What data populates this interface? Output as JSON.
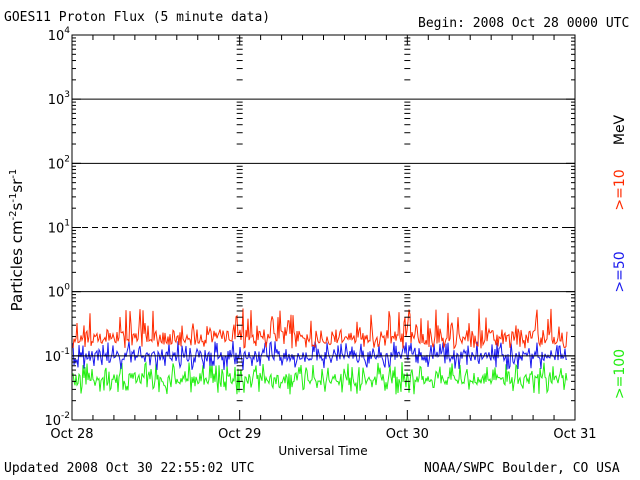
{
  "header": {
    "title": "GOES11 Proton Flux (5 minute data)",
    "begin": "Begin: 2008 Oct 28 0000 UTC"
  },
  "footer": {
    "updated": "Updated 2008 Oct 30 22:55:02 UTC",
    "credit": "NOAA/SWPC Boulder, CO USA"
  },
  "colors": {
    "series_10": "#ff2a00",
    "series_50": "#1a1aee",
    "series_100": "#22ee11",
    "axis": "#000000"
  },
  "chart_data": {
    "type": "line",
    "title": "GOES11 Proton Flux (5 minute data)",
    "xlabel": "Universal Time",
    "ylabel": "Particles cm⁻²s⁻¹sr⁻¹",
    "yscale": "log",
    "ylim": [
      0.01,
      10000
    ],
    "xlim": [
      "2008-10-28 00:00",
      "2008-10-31 00:00"
    ],
    "x_ticks": [
      "Oct 28",
      "Oct 29",
      "Oct 30",
      "Oct 31"
    ],
    "y_ticks": [
      {
        "base": "10",
        "exp": "-2",
        "value": 0.01
      },
      {
        "base": "10",
        "exp": "-1",
        "value": 0.1
      },
      {
        "base": "10",
        "exp": "0",
        "value": 1
      },
      {
        "base": "10",
        "exp": "1",
        "value": 10
      },
      {
        "base": "10",
        "exp": "2",
        "value": 100
      },
      {
        "base": "10",
        "exp": "3",
        "value": 1000
      },
      {
        "base": "10",
        "exp": "4",
        "value": 10000
      }
    ],
    "grid": true,
    "legend": {
      "unit": "MeV",
      "placement": "right"
    },
    "series": [
      {
        "name": ">=10",
        "color": "#ff2a00",
        "typical": 0.2,
        "range": [
          0.13,
          0.55
        ]
      },
      {
        "name": ">=50",
        "color": "#1a1aee",
        "typical": 0.1,
        "range": [
          0.06,
          0.17
        ]
      },
      {
        "name": ">=100",
        "color": "#22ee11",
        "typical": 0.045,
        "range": [
          0.025,
          0.08
        ]
      }
    ],
    "data_end": "2008-10-30 22:55"
  }
}
